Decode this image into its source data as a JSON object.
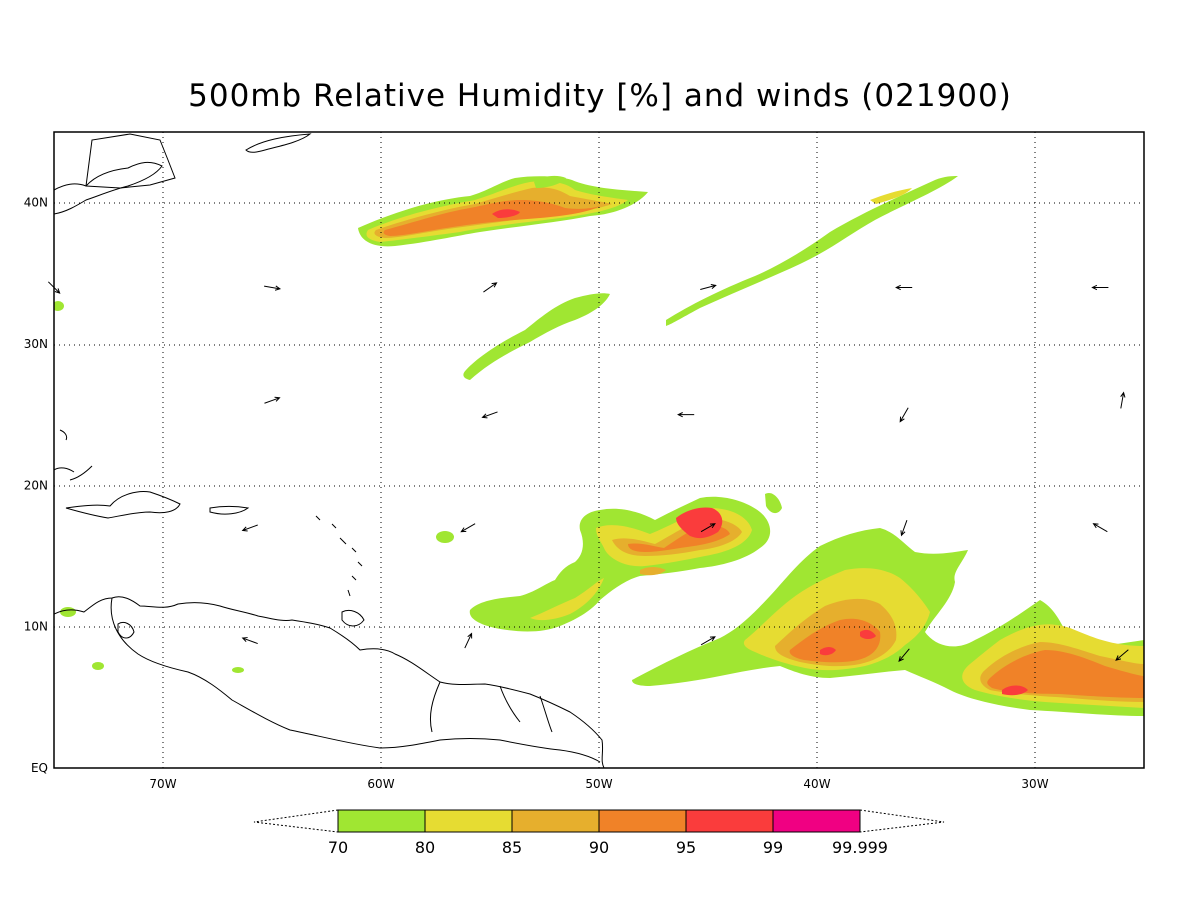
{
  "title": "500mb Relative Humidity [%] and winds (021900)",
  "map": {
    "lat_labels": [
      "EQ",
      "10N",
      "20N",
      "30N",
      "40N"
    ],
    "lon_labels": [
      "70W",
      "60W",
      "50W",
      "40W",
      "30W"
    ],
    "lat_values": [
      0,
      10,
      20,
      30,
      40
    ],
    "lon_values": [
      -70,
      -60,
      -50,
      -40,
      -30
    ],
    "lon_range": [
      -75,
      -25
    ],
    "lat_range": [
      0,
      45
    ],
    "grid": "dotted"
  },
  "colorbar": {
    "labels": [
      "70",
      "80",
      "85",
      "90",
      "95",
      "99",
      "99.999"
    ],
    "colors": [
      "#a0e632",
      "#e6dc32",
      "#e6af2d",
      "#f08228",
      "#fa3c3c",
      "#f00082"
    ]
  },
  "colors": {
    "rh70": "#a0e632",
    "rh80": "#e6dc32",
    "rh85": "#e6af2d",
    "rh90": "#f08228",
    "rh95": "#fa3c3c",
    "rh99": "#f00082"
  },
  "winds": [
    {
      "lon": -75,
      "lat": 34,
      "dir_deg": 135
    },
    {
      "lon": -65,
      "lat": 34,
      "dir_deg": 100
    },
    {
      "lon": -55,
      "lat": 34,
      "dir_deg": 55
    },
    {
      "lon": -45,
      "lat": 34,
      "dir_deg": 75
    },
    {
      "lon": -36,
      "lat": 34,
      "dir_deg": 270
    },
    {
      "lon": -27,
      "lat": 34,
      "dir_deg": 270
    },
    {
      "lon": -65,
      "lat": 26,
      "dir_deg": 70
    },
    {
      "lon": -55,
      "lat": 25,
      "dir_deg": 250
    },
    {
      "lon": -46,
      "lat": 25,
      "dir_deg": 270
    },
    {
      "lon": -36,
      "lat": 25,
      "dir_deg": 210
    },
    {
      "lon": -26,
      "lat": 26,
      "dir_deg": 10
    },
    {
      "lon": -66,
      "lat": 17,
      "dir_deg": 250
    },
    {
      "lon": -56,
      "lat": 17,
      "dir_deg": 240
    },
    {
      "lon": -45,
      "lat": 17,
      "dir_deg": 60
    },
    {
      "lon": -36,
      "lat": 17,
      "dir_deg": 200
    },
    {
      "lon": -27,
      "lat": 17,
      "dir_deg": 300
    },
    {
      "lon": -66,
      "lat": 9,
      "dir_deg": 290
    },
    {
      "lon": -56,
      "lat": 9,
      "dir_deg": 25
    },
    {
      "lon": -45,
      "lat": 9,
      "dir_deg": 60
    },
    {
      "lon": -36,
      "lat": 8,
      "dir_deg": 220
    },
    {
      "lon": -26,
      "lat": 8,
      "dir_deg": 230
    }
  ]
}
